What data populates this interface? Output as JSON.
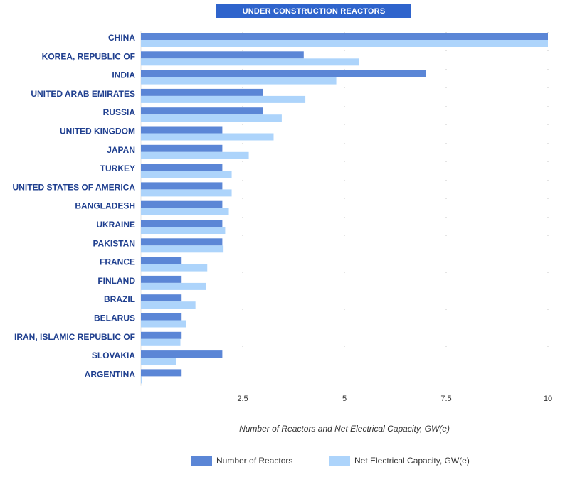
{
  "chart_data": {
    "type": "bar",
    "orientation": "horizontal",
    "title": "UNDER CONSTRUCTION REACTORS",
    "xlabel": "Number of Reactors and Net Electrical Capacity, GW(e)",
    "ylabel": "",
    "xlim": [
      0,
      10
    ],
    "xticks": [
      2.5,
      5,
      7.5,
      10
    ],
    "xtick_labels": [
      "2.5",
      "5",
      "7.5",
      "10"
    ],
    "categories": [
      "CHINA",
      "KOREA, REPUBLIC OF",
      "INDIA",
      "UNITED ARAB EMIRATES",
      "RUSSIA",
      "UNITED KINGDOM",
      "JAPAN",
      "TURKEY",
      "UNITED STATES OF AMERICA",
      "BANGLADESH",
      "UKRAINE",
      "PAKISTAN",
      "FRANCE",
      "FINLAND",
      "BRAZIL",
      "BELARUS",
      "IRAN, ISLAMIC REPUBLIC OF",
      "SLOVAKIA",
      "ARGENTINA"
    ],
    "series": [
      {
        "name": "Number of Reactors",
        "color": "#5b86d6",
        "values": [
          10,
          4,
          7,
          3,
          3,
          2,
          2,
          2,
          2,
          2,
          2,
          2,
          1,
          1,
          1,
          1,
          1,
          2,
          1
        ]
      },
      {
        "name": "Net Electrical Capacity, GW(e)",
        "color": "#add4fb",
        "values": [
          10,
          5.36,
          4.8,
          4.04,
          3.46,
          3.26,
          2.65,
          2.23,
          2.23,
          2.16,
          2.07,
          2.03,
          1.63,
          1.6,
          1.34,
          1.11,
          0.97,
          0.87,
          0.03
        ]
      }
    ],
    "legend_position": "bottom",
    "grid": true
  }
}
